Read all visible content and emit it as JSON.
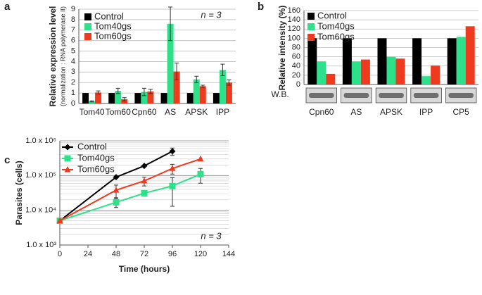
{
  "chart_data": [
    {
      "type": "bar",
      "panel_label": "a",
      "y_label": "Relative expression level",
      "y_sublabel": "(normalization : RNA polymerase II)",
      "annotation": "n = 3",
      "categories": [
        "Tom40",
        "Tom60",
        "Cpn60",
        "AS",
        "APSK",
        "IPP"
      ],
      "series": [
        {
          "name": "Control",
          "color": "#000000",
          "values": [
            1,
            1,
            1,
            1,
            1,
            1
          ]
        },
        {
          "name": "Tom40gs",
          "color": "#2ee08a",
          "values": [
            0.2,
            1.2,
            1.1,
            7.6,
            2.3,
            3.2
          ],
          "errors": [
            0.05,
            0.25,
            0.35,
            1.6,
            0.3,
            0.55
          ]
        },
        {
          "name": "Tom60gs",
          "color": "#ee3a1f",
          "values": [
            1.05,
            0.4,
            1.15,
            3.05,
            1.65,
            2.0
          ],
          "errors": [
            0.15,
            0.15,
            0.2,
            0.8,
            0.1,
            0.25
          ]
        }
      ],
      "ylim": [
        0,
        9
      ],
      "yticks": [
        0,
        1,
        2,
        3,
        4,
        5,
        6,
        7,
        8,
        9
      ],
      "grid": true,
      "legend": "upper left"
    },
    {
      "type": "bar",
      "panel_label": "b",
      "y_label": "Relative intensity (%)",
      "blot_label": "W.B.",
      "categories": [
        "Cpn60",
        "AS",
        "APSK",
        "IPP",
        "CP5"
      ],
      "series": [
        {
          "name": "Control",
          "color": "#000000",
          "values": [
            100,
            100,
            100,
            100,
            100
          ]
        },
        {
          "name": "Tom40gs",
          "color": "#2ee08a",
          "values": [
            50,
            50,
            60,
            18,
            103
          ]
        },
        {
          "name": "Tom60gs",
          "color": "#ee3a1f",
          "values": [
            23,
            54,
            56,
            41,
            126
          ]
        }
      ],
      "ylim": [
        0,
        160
      ],
      "yticks": [
        0,
        20,
        40,
        60,
        80,
        100,
        120,
        140,
        160
      ],
      "grid": true,
      "legend": "upper left"
    },
    {
      "type": "line",
      "panel_label": "c",
      "y_label": "Parasites (cells)",
      "x_label": "Time (hours)",
      "annotation": "n = 3",
      "series": [
        {
          "name": "Control",
          "color": "#000000",
          "marker": "diamond",
          "x": [
            0,
            48,
            72,
            96
          ],
          "values": [
            5000,
            90000,
            190000,
            500000
          ],
          "errors": [
            0,
            0,
            0,
            120000
          ]
        },
        {
          "name": "Tom40gs",
          "color": "#2ee08a",
          "marker": "square",
          "x": [
            0,
            48,
            72,
            96,
            120
          ],
          "values": [
            5000,
            17000,
            31000,
            50000,
            110000
          ],
          "errors": [
            0,
            5000,
            0,
            37000,
            50000
          ]
        },
        {
          "name": "Tom60gs",
          "color": "#ee3a1f",
          "marker": "triangle",
          "x": [
            0,
            48,
            72,
            96,
            120
          ],
          "values": [
            5000,
            38000,
            70000,
            160000,
            300000
          ],
          "errors": [
            0,
            15000,
            20000,
            50000,
            0
          ]
        }
      ],
      "xlim": [
        0,
        144
      ],
      "xticks": [
        0,
        24,
        48,
        72,
        96,
        120,
        144
      ],
      "ylim": [
        1000,
        1000000
      ],
      "log_y": true,
      "yticks": [
        {
          "value": 1000,
          "label": "1.0 x 10³"
        },
        {
          "value": 10000,
          "label": "1.0 x 10⁴"
        },
        {
          "value": 100000,
          "label": "1.0 x 10⁵"
        },
        {
          "value": 1000000,
          "label": "1.0 x 10⁶"
        }
      ],
      "grid": true,
      "legend": "upper left"
    }
  ]
}
